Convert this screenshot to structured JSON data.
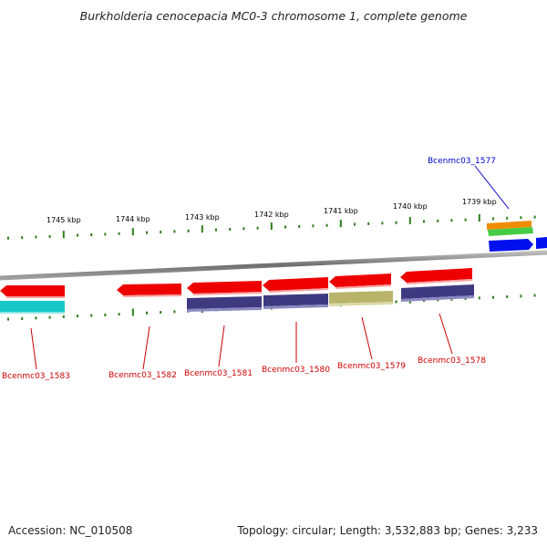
{
  "title": "Burkholderia cenocepacia MC0-3 chromosome 1, complete genome",
  "footer": {
    "accession": "Accession: NC_010508",
    "summary": "Topology: circular; Length: 3,532,883 bp; Genes: 3,233"
  },
  "scale_ticks": [
    "1745 kbp",
    "1744 kbp",
    "1743 kbp",
    "1742 kbp",
    "1741 kbp",
    "1740 kbp",
    "1739 kbp"
  ],
  "genes": [
    {
      "name": "Bcenmc03_1583",
      "color": "#cc0000"
    },
    {
      "name": "Bcenmc03_1582",
      "color": "#cc0000"
    },
    {
      "name": "Bcenmc03_1581",
      "color": "#cc0000"
    },
    {
      "name": "Bcenmc03_1580",
      "color": "#cc0000"
    },
    {
      "name": "Bcenmc03_1579",
      "color": "#cc0000"
    },
    {
      "name": "Bcenmc03_1578",
      "color": "#cc0000"
    },
    {
      "name": "Bcenmc03_1577",
      "color": "#0000cc"
    }
  ],
  "colors": {
    "cds_red": "#ee0000",
    "cog_purple": "#3d3a80",
    "cog_khaki": "#b8b46a",
    "cog_cyan": "#16c7c7",
    "cog_orange": "#f08c00",
    "cog_green": "#44cc44",
    "cds_blue": "#0010ee",
    "tick_green": "#2e7d1e",
    "backbone": "#7f7f7f"
  }
}
